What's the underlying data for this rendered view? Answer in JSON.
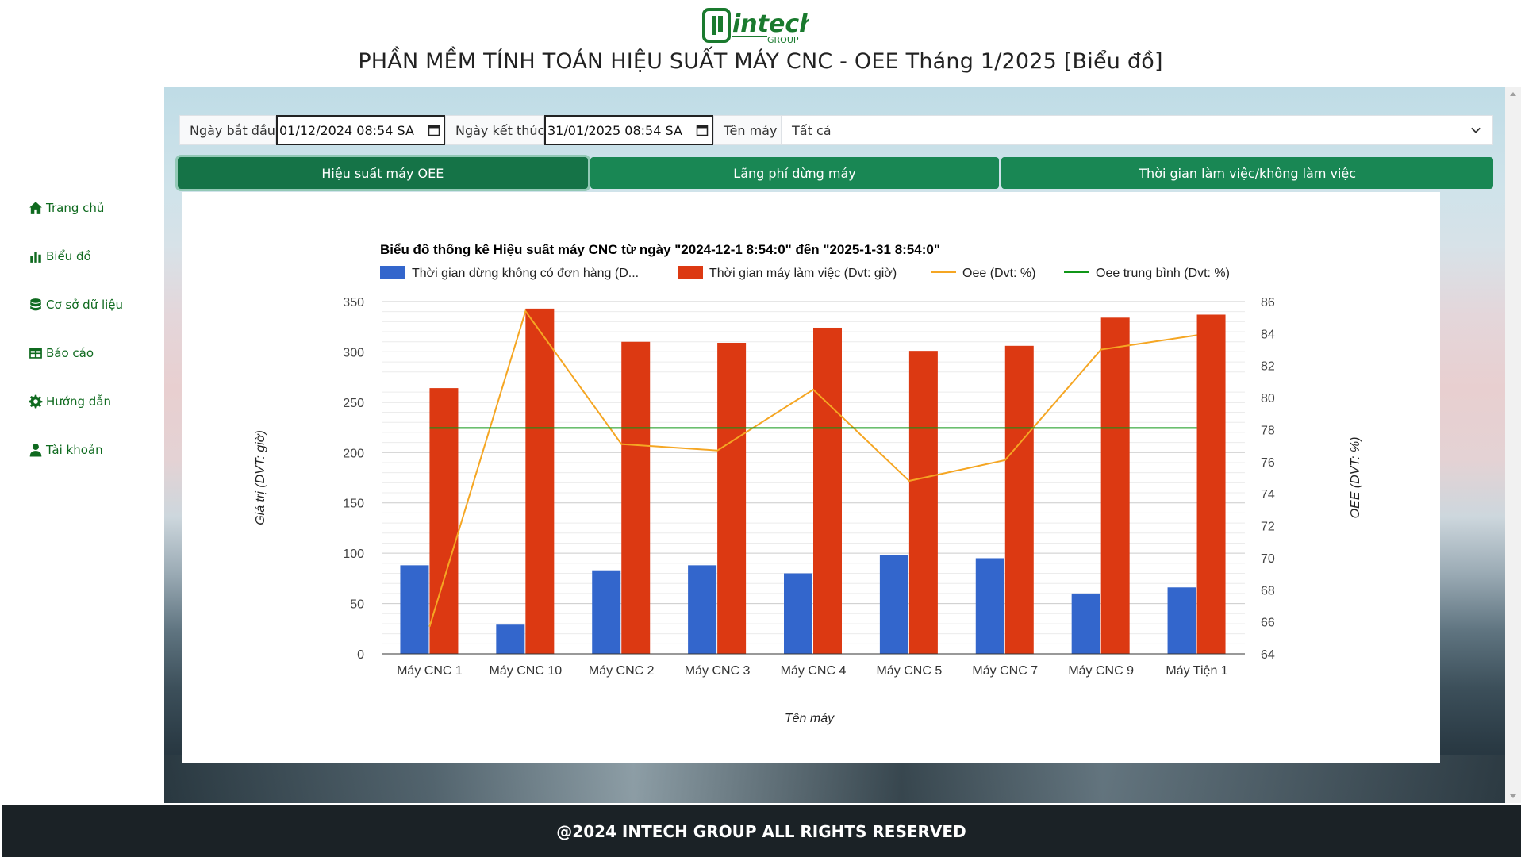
{
  "logo": {
    "text": "intech",
    "subtext": "GROUP"
  },
  "page_title": "PHẦN MỀM TÍNH TOÁN HIỆU SUẤT MÁY CNC - OEE Tháng 1/2025 [Biểu đồ]",
  "sidebar": {
    "items": [
      {
        "label": "Trang chủ",
        "icon": "home-icon"
      },
      {
        "label": "Biểu đồ",
        "icon": "bar-chart-icon"
      },
      {
        "label": "Cơ sở dữ liệu",
        "icon": "database-icon"
      },
      {
        "label": "Báo cáo",
        "icon": "table-icon"
      },
      {
        "label": "Hướng dẫn",
        "icon": "gear-icon"
      },
      {
        "label": "Tài khoản",
        "icon": "user-icon"
      }
    ]
  },
  "filters": {
    "start_label": "Ngày bắt đầu",
    "start_value": "01/12/2024 08:54 SA",
    "end_label": "Ngày kết thúc",
    "end_value": "31/01/2025 08:54 SA",
    "machine_label": "Tên máy",
    "machine_value": "Tất cả"
  },
  "tabs": [
    {
      "label": "Hiệu suất máy OEE",
      "active": true
    },
    {
      "label": "Lãng phí dừng máy",
      "active": false
    },
    {
      "label": "Thời gian làm việc/không làm việc",
      "active": false
    }
  ],
  "chart_data": {
    "type": "bar",
    "title": "Biểu đồ thống kê Hiệu suất máy CNC từ ngày \"2024-12-1 8:54:0\" đến \"2025-1-31 8:54:0\"",
    "xlabel": "Tên máy",
    "ylabel": "Giá trị (DVT: giờ)",
    "y2label": "OEE (DVT: %)",
    "ylim": [
      0,
      350
    ],
    "y2lim": [
      64,
      86
    ],
    "yticks": [
      0,
      50,
      100,
      150,
      200,
      250,
      300,
      350
    ],
    "y2ticks": [
      64,
      66,
      68,
      70,
      72,
      74,
      76,
      78,
      80,
      82,
      84,
      86
    ],
    "legend_position": "top",
    "grid": true,
    "categories": [
      "Máy CNC 1",
      "Máy CNC 10",
      "Máy CNC 2",
      "Máy CNC 3",
      "Máy CNC 4",
      "Máy CNC 5",
      "Máy CNC 7",
      "Máy CNC 9",
      "Máy Tiện 1"
    ],
    "series": [
      {
        "name": "Thời gian dừng không có đơn hàng (D...",
        "kind": "bar",
        "axis": "left",
        "color": "#3366cc",
        "values": [
          88,
          29,
          83,
          88,
          80,
          98,
          95,
          60,
          66
        ]
      },
      {
        "name": "Thời gian máy làm việc (Dvt: giờ)",
        "kind": "bar",
        "axis": "left",
        "color": "#dc3912",
        "values": [
          264,
          343,
          310,
          309,
          324,
          301,
          306,
          334,
          337
        ]
      },
      {
        "name": "Oee (Dvt: %)",
        "kind": "line",
        "axis": "right",
        "color": "#f5a623",
        "values": [
          65.7,
          85.4,
          77.1,
          76.7,
          80.5,
          74.8,
          76.1,
          83.0,
          83.9
        ]
      },
      {
        "name": "Oee trung bình (Dvt: %)",
        "kind": "line",
        "axis": "right",
        "color": "#109618",
        "values": [
          78.1,
          78.1,
          78.1,
          78.1,
          78.1,
          78.1,
          78.1,
          78.1,
          78.1
        ]
      }
    ]
  },
  "footer": "@2024 INTECH GROUP ALL RIGHTS RESERVED"
}
